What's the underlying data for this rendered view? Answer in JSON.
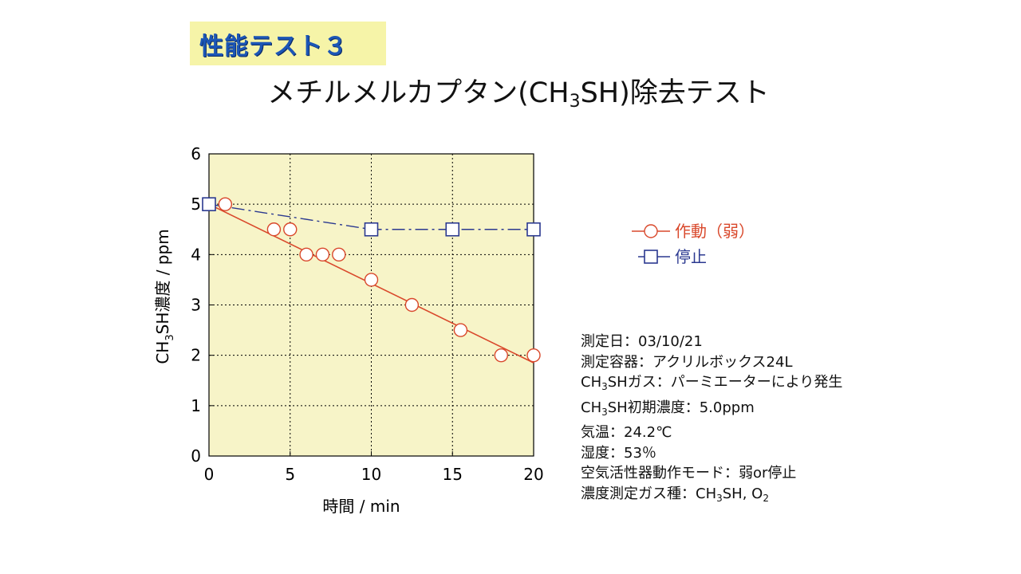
{
  "header": {
    "badge": "性能テスト３",
    "title_pre": "メチルメルカプタン(CH",
    "title_sub": "3",
    "title_post": "SH)除去テスト"
  },
  "colors": {
    "badge_bg": "#f6f4a8",
    "badge_text": "#1c56b6",
    "plot_bg": "#f7f4c8",
    "series_on": "#d9482b",
    "series_off": "#2b3990"
  },
  "chart_data": {
    "type": "line",
    "xlabel": "時間 / min",
    "ylabel_pre": "CH",
    "ylabel_sub": "3",
    "ylabel_post": "SH濃度 / ppm",
    "xlim": [
      0,
      20
    ],
    "ylim": [
      0,
      6
    ],
    "xticks": [
      0,
      5,
      10,
      15,
      20
    ],
    "yticks": [
      0,
      1,
      2,
      3,
      4,
      5,
      6
    ],
    "grid": true,
    "legend_position": "right",
    "series": [
      {
        "name": "作動（弱）",
        "marker": "circle",
        "points": [
          [
            1,
            5.0
          ],
          [
            4,
            4.5
          ],
          [
            5,
            4.5
          ],
          [
            6,
            4.0
          ],
          [
            7,
            4.0
          ],
          [
            8,
            4.0
          ],
          [
            10,
            3.5
          ],
          [
            12.5,
            3.0
          ],
          [
            15.5,
            2.5
          ],
          [
            18,
            2.0
          ],
          [
            20,
            2.0
          ]
        ],
        "trendline": [
          [
            0,
            5.0
          ],
          [
            20,
            1.85
          ]
        ]
      },
      {
        "name": "停止",
        "marker": "square",
        "points": [
          [
            0,
            5.0
          ],
          [
            10,
            4.5
          ],
          [
            15,
            4.5
          ],
          [
            20,
            4.5
          ]
        ]
      }
    ]
  },
  "info": {
    "line1": "測定日：03/10/21",
    "line2": "測定容器：アクリルボックス24L",
    "line3_pre": "CH",
    "line3_sub": "3",
    "line3_post": "SHガス：パーミエーターにより発生",
    "line4_pre": "CH",
    "line4_sub": "3",
    "line4_post": "SH初期濃度：5.0ppm",
    "line5": "気温：24.2℃",
    "line6": "湿度：53％",
    "line7": "空気活性器動作モード：弱or停止",
    "line8_pre": "濃度測定ガス種：CH",
    "line8_sub": "3",
    "line8_mid": "SH, O",
    "line8_sub2": "2"
  }
}
